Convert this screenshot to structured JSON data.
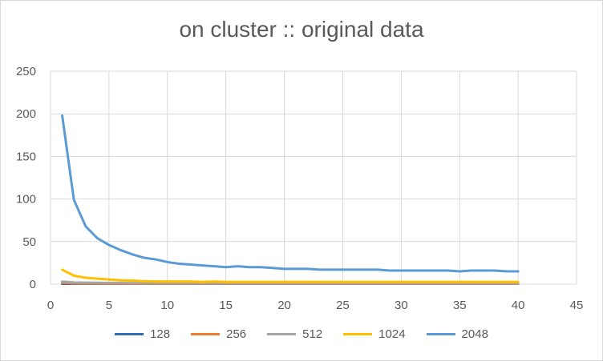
{
  "chart_data": {
    "type": "line",
    "title": "on cluster :: original data",
    "xlabel": "",
    "ylabel": "",
    "xlim": [
      0,
      45
    ],
    "ylim": [
      0,
      250
    ],
    "xticks": [
      0,
      5,
      10,
      15,
      20,
      25,
      30,
      35,
      40,
      45
    ],
    "yticks": [
      0,
      50,
      100,
      150,
      200,
      250
    ],
    "grid": true,
    "legend_position": "bottom",
    "x": [
      1,
      2,
      3,
      4,
      5,
      6,
      7,
      8,
      9,
      10,
      11,
      12,
      13,
      14,
      15,
      16,
      17,
      18,
      19,
      20,
      21,
      22,
      23,
      24,
      25,
      26,
      27,
      28,
      29,
      30,
      31,
      32,
      33,
      34,
      35,
      36,
      37,
      38,
      39,
      40
    ],
    "series": [
      {
        "name": "128",
        "color": "#2e6db4",
        "values": [
          0.5,
          0.5,
          0.5,
          0.5,
          0.5,
          0.5,
          0.5,
          0.5,
          0.5,
          0.5,
          0.5,
          0.5,
          0.5,
          0.5,
          0.5,
          0.5,
          0.5,
          0.5,
          0.5,
          0.5,
          0.5,
          0.5,
          0.5,
          0.5,
          0.5,
          0.5,
          0.5,
          0.5,
          0.5,
          0.5,
          0.5,
          0.5,
          0.5,
          0.5,
          0.5,
          0.5,
          0.5,
          0.5,
          0.5,
          0.5
        ]
      },
      {
        "name": "256",
        "color": "#ed7d31",
        "values": [
          1.5,
          1,
          0.8,
          0.8,
          0.7,
          0.7,
          0.6,
          0.6,
          0.6,
          0.6,
          0.6,
          0.6,
          0.6,
          0.6,
          0.6,
          0.6,
          0.6,
          0.6,
          0.6,
          0.6,
          0.6,
          0.6,
          0.6,
          0.6,
          0.6,
          0.6,
          0.6,
          0.6,
          0.6,
          0.6,
          0.6,
          0.6,
          0.6,
          0.6,
          0.6,
          0.6,
          0.6,
          0.6,
          0.6,
          0.6
        ]
      },
      {
        "name": "512",
        "color": "#a5a5a5",
        "values": [
          3,
          2,
          1.8,
          1.6,
          1.5,
          1.4,
          1.3,
          1.3,
          1.2,
          1.2,
          1.2,
          1.2,
          1.1,
          1.1,
          1.1,
          1.1,
          1.1,
          1.1,
          1.1,
          1.1,
          1.1,
          1.1,
          1.1,
          1.1,
          1.1,
          1.1,
          1.1,
          1.1,
          1.1,
          1.1,
          1.1,
          1.1,
          1.1,
          1.1,
          1.1,
          1.1,
          1.1,
          1.1,
          1.1,
          1.1
        ]
      },
      {
        "name": "1024",
        "color": "#ffc000",
        "values": [
          17,
          10,
          7.5,
          6.5,
          5.5,
          4.5,
          4.2,
          3.5,
          3.2,
          3.2,
          3.2,
          3.2,
          2.6,
          3.2,
          2.6,
          2.6,
          2.6,
          2.6,
          2.6,
          2.6,
          2.6,
          2.6,
          2.6,
          2.6,
          2.6,
          2.6,
          2.6,
          2.6,
          2.6,
          2.6,
          2.6,
          2.6,
          2.6,
          2.6,
          2.6,
          2.6,
          2.6,
          2.6,
          2.6,
          2.6
        ]
      },
      {
        "name": "2048",
        "color": "#5b9bd5",
        "values": [
          198,
          99,
          68,
          54,
          46,
          40,
          35,
          31,
          29,
          26,
          24,
          23,
          22,
          21,
          20,
          21,
          20,
          20,
          19,
          18,
          18,
          18,
          17,
          17,
          17,
          17,
          17,
          17,
          16,
          16,
          16,
          16,
          16,
          16,
          15,
          16,
          16,
          16,
          15,
          15
        ]
      }
    ]
  }
}
